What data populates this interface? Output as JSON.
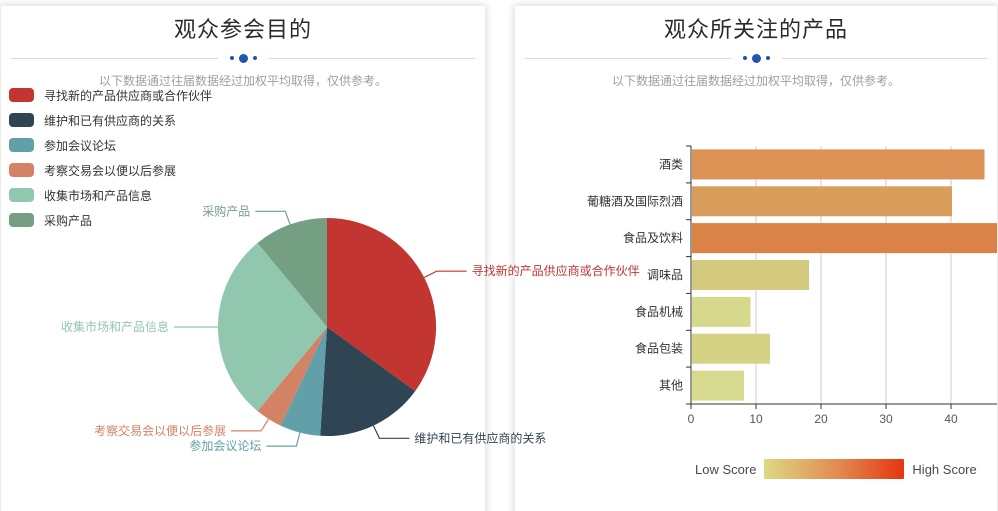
{
  "left_panel": {
    "title": "观众参会目的",
    "subtitle": "以下数据通过往届数据经过加权平均取得，仅供参考。"
  },
  "right_panel": {
    "title": "观众所关注的产品",
    "subtitle": "以下数据通过往届数据经过加权平均取得，仅供参考。"
  },
  "chart_data": [
    {
      "type": "pie",
      "title": "观众参会目的",
      "labels": [
        "寻找新的产品供应商或合作伙伴",
        "维护和已有供应商的关系",
        "参加会议论坛",
        "考察交易会以便以后参展",
        "收集市场和产品信息",
        "采购产品"
      ],
      "values": [
        35,
        16,
        6,
        4,
        28,
        11
      ],
      "colors": [
        "#c23531",
        "#2f4554",
        "#61a0a8",
        "#d48265",
        "#91c7ae",
        "#749f83"
      ],
      "start_angle": "top",
      "direction": "clockwise",
      "legend_position": "top-left",
      "labels_outside": true
    },
    {
      "type": "bar",
      "orientation": "horizontal",
      "title": "观众所关注的产品",
      "categories": [
        "酒类",
        "葡糖酒及国际烈酒",
        "食品及饮料",
        "调味品",
        "食品机械",
        "食品包装",
        "其他"
      ],
      "values": [
        45,
        40,
        47.5,
        18,
        9,
        12,
        8
      ],
      "bar_colors": [
        "#db9254",
        "#d99e5b",
        "#db8347",
        "#d3ca7e",
        "#d6d98b",
        "#d4d285",
        "#d7da8e"
      ],
      "xlim": [
        0,
        47.5
      ],
      "x_ticks": [
        0,
        10,
        20,
        30,
        40
      ],
      "grid": true,
      "visual_map": {
        "low_label": "Low Score",
        "high_label": "High Score",
        "gradient": [
          "#ded983",
          "#e2874e",
          "#e63511"
        ]
      }
    }
  ]
}
